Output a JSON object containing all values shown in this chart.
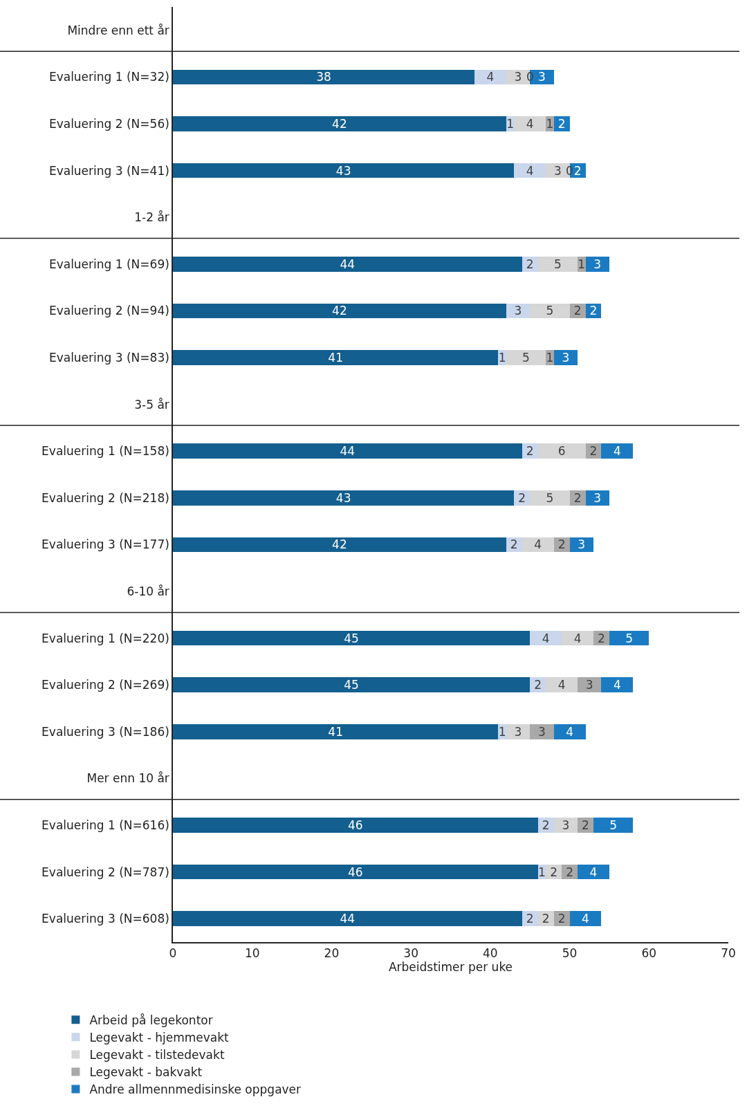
{
  "chart_data": {
    "type": "bar",
    "orientation": "horizontal",
    "stacked": true,
    "data_labels": true,
    "xlabel": "Arbeidstimer per uke",
    "xlim": [
      0,
      70
    ],
    "xticks": [
      0,
      10,
      20,
      30,
      40,
      50,
      60,
      70
    ],
    "grid": false,
    "legend": "bottom",
    "categories": [
      "Mindre enn ett år",
      "Evaluering 1 (N=32)",
      "Evaluering 2 (N=56)",
      "Evaluering 3 (N=41)",
      "1-2 år",
      "Evaluering 1 (N=69)",
      "Evaluering 2 (N=94)",
      "Evaluering 3 (N=83)",
      "3-5 år",
      "Evaluering 1 (N=158)",
      "Evaluering 2 (N=218)",
      "Evaluering 3 (N=177)",
      "6-10 år",
      "Evaluering 1 (N=220)",
      "Evaluering 2 (N=269)",
      "Evaluering 3 (N=186)",
      "Mer enn 10 år",
      "Evaluering 1 (N=616)",
      "Evaluering 2 (N=787)",
      "Evaluering 3 (N=608)"
    ],
    "series": [
      {
        "name": "Arbeid på legekontor",
        "color": "#135f8f",
        "values": [
          null,
          38,
          42,
          43,
          null,
          44,
          42,
          41,
          null,
          44,
          43,
          42,
          null,
          45,
          45,
          41,
          null,
          46,
          46,
          44
        ]
      },
      {
        "name": "Legevakt - hjemmevakt",
        "color": "#c9d6ec",
        "values": [
          null,
          4,
          1,
          4,
          null,
          2,
          3,
          1,
          null,
          2,
          2,
          2,
          null,
          4,
          2,
          1,
          null,
          2,
          1,
          2
        ]
      },
      {
        "name": "Legevakt - tilstedevakt",
        "color": "#d6d6d6",
        "values": [
          null,
          3,
          4,
          3,
          null,
          5,
          5,
          5,
          null,
          6,
          5,
          4,
          null,
          4,
          4,
          3,
          null,
          3,
          2,
          2
        ]
      },
      {
        "name": "Legevakt - bakvakt",
        "color": "#a9a9a9",
        "values": [
          null,
          0,
          1,
          0,
          null,
          1,
          2,
          1,
          null,
          2,
          2,
          2,
          null,
          2,
          3,
          3,
          null,
          2,
          2,
          2
        ]
      },
      {
        "name": "Andre allmennmedisinske oppgaver",
        "color": "#1b7bc2",
        "values": [
          null,
          3,
          2,
          2,
          null,
          3,
          2,
          3,
          null,
          4,
          3,
          3,
          null,
          5,
          4,
          4,
          null,
          5,
          4,
          4
        ]
      }
    ]
  }
}
